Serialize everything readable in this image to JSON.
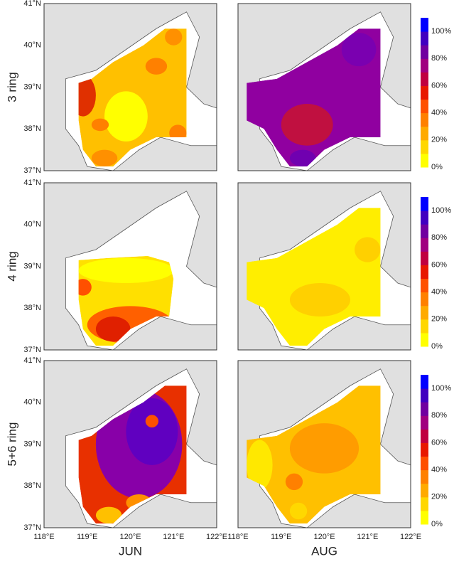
{
  "rows": [
    "3 ring",
    "4 ring",
    "5+6 ring"
  ],
  "columns": [
    "JUN",
    "AUG"
  ],
  "lat_labels": [
    "41°N",
    "40°N",
    "39°N",
    "38°N",
    "37°N"
  ],
  "lon_labels": [
    "118°E",
    "119°E",
    "120°E",
    "121°E",
    "122°E"
  ],
  "colorbar_labels": [
    "100%",
    "80%",
    "60%",
    "40%",
    "20%",
    "0%"
  ]
}
